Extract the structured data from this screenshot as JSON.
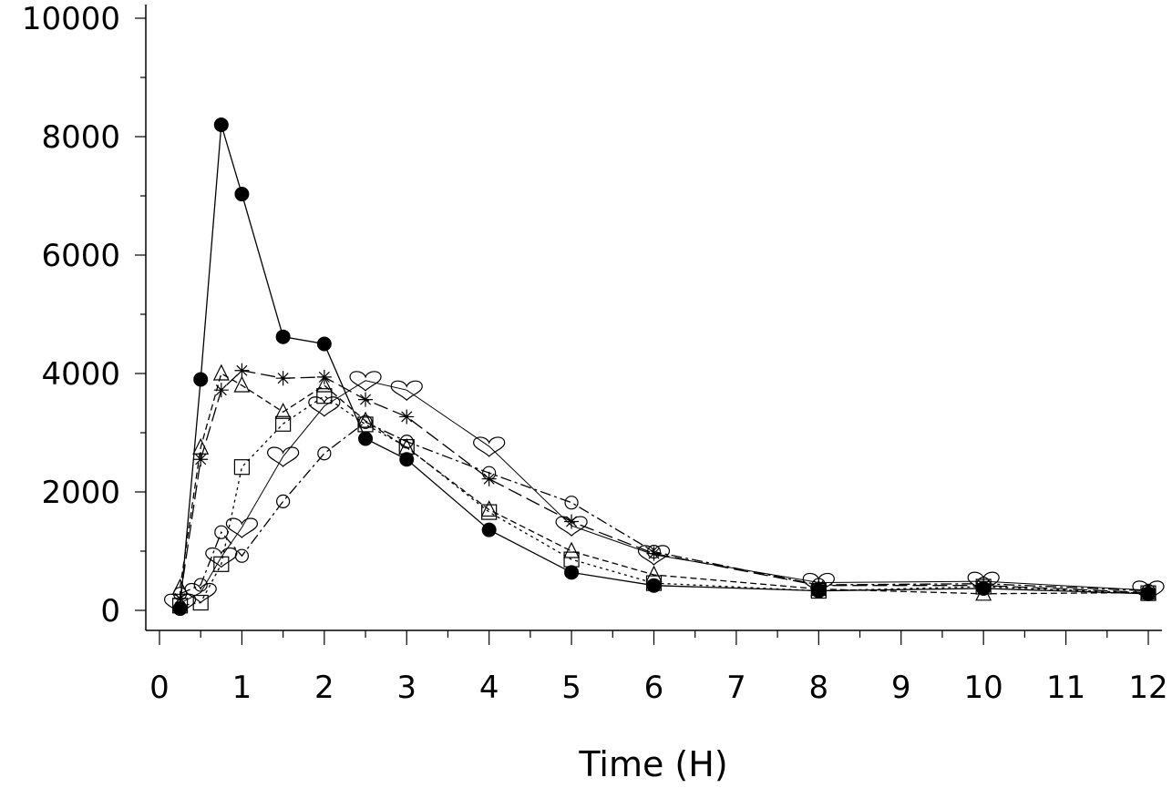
{
  "chart_data": {
    "type": "line",
    "xlabel": "Time (H)",
    "ylabel": "",
    "xlim": [
      0,
      12
    ],
    "ylim": [
      0,
      10000
    ],
    "x_ticks": [
      0,
      1,
      2,
      3,
      4,
      5,
      6,
      7,
      8,
      9,
      10,
      11,
      12
    ],
    "y_ticks": [
      0,
      2000,
      4000,
      6000,
      8000,
      10000
    ],
    "grid": false,
    "color": "#000000",
    "series": [
      {
        "marker": "filled-circle",
        "line": "solid",
        "x": [
          0.25,
          0.5,
          0.75,
          1,
          1.5,
          2,
          2.5,
          3,
          4,
          5,
          6,
          8,
          10,
          12
        ],
        "y": [
          30,
          3900,
          8200,
          7030,
          4620,
          4500,
          2900,
          2550,
          1360,
          640,
          420,
          330,
          370,
          280
        ]
      },
      {
        "marker": "triangle",
        "line": "dashed",
        "x": [
          0.25,
          0.5,
          0.75,
          1,
          1.5,
          2,
          2.5,
          3,
          4,
          5,
          6,
          8,
          10,
          12
        ],
        "y": [
          380,
          2750,
          4000,
          3800,
          3350,
          3800,
          3200,
          2750,
          1700,
          1000,
          600,
          360,
          280,
          300
        ]
      },
      {
        "marker": "star",
        "line": "long-dash",
        "x": [
          0.25,
          0.5,
          0.75,
          1,
          1.5,
          2,
          2.5,
          3,
          4,
          5,
          6,
          8,
          10,
          12
        ],
        "y": [
          200,
          2550,
          3720,
          4050,
          3920,
          3940,
          3560,
          3270,
          2220,
          1500,
          960,
          420,
          420,
          300
        ]
      },
      {
        "marker": "square",
        "line": "dotted",
        "x": [
          0.25,
          0.5,
          0.75,
          1,
          1.5,
          2,
          2.5,
          3,
          4,
          5,
          6,
          8,
          10,
          12
        ],
        "y": [
          80,
          130,
          780,
          2420,
          3150,
          3620,
          3140,
          2760,
          1660,
          860,
          460,
          330,
          400,
          290
        ]
      },
      {
        "marker": "open-circle",
        "line": "dash-dot",
        "x": [
          0.25,
          0.5,
          0.75,
          1,
          1.5,
          2,
          2.5,
          3,
          4,
          5,
          6,
          8,
          10,
          12
        ],
        "y": [
          280,
          430,
          1320,
          920,
          1840,
          2650,
          3180,
          2850,
          2320,
          1820,
          990,
          430,
          450,
          330
        ]
      },
      {
        "marker": "heart",
        "line": "thin",
        "x": [
          0.25,
          0.5,
          0.75,
          1,
          1.5,
          2,
          2.5,
          3,
          4,
          5,
          6,
          8,
          10,
          12
        ],
        "y": [
          120,
          300,
          900,
          1400,
          2600,
          3450,
          3880,
          3720,
          2770,
          1430,
          940,
          470,
          490,
          340
        ]
      }
    ]
  }
}
